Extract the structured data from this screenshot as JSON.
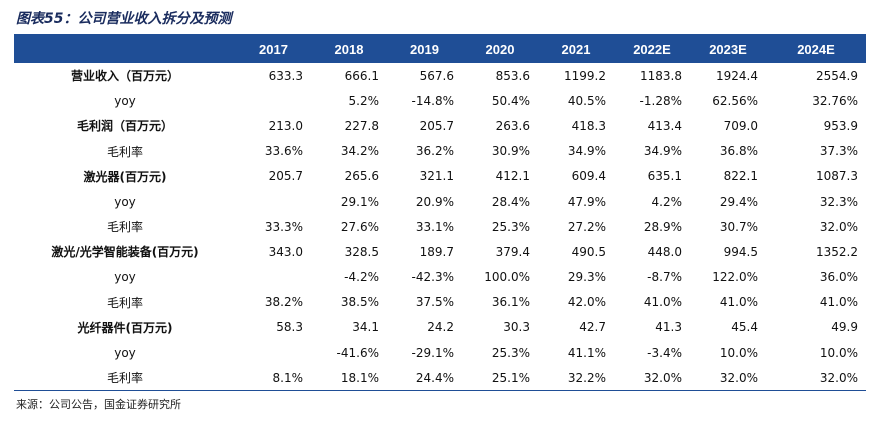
{
  "title": "图表55：公司营业收入拆分及预测",
  "header": [
    "",
    "2017",
    "2018",
    "2019",
    "2020",
    "2021",
    "2022E",
    "2023E",
    "2024E"
  ],
  "rows": [
    {
      "type": "main",
      "label": "营业收入（百万元）",
      "values": [
        "633.3",
        "666.1",
        "567.6",
        "853.6",
        "1199.2",
        "1183.8",
        "1924.4",
        "2554.9"
      ]
    },
    {
      "type": "sub",
      "label": "yoy",
      "values": [
        "",
        "5.2%",
        "-14.8%",
        "50.4%",
        "40.5%",
        "-1.28%",
        "62.56%",
        "32.76%"
      ]
    },
    {
      "type": "main",
      "label": "毛利润（百万元）",
      "values": [
        "213.0",
        "227.8",
        "205.7",
        "263.6",
        "418.3",
        "413.4",
        "709.0",
        "953.9"
      ]
    },
    {
      "type": "sub",
      "label": "毛利率",
      "values": [
        "33.6%",
        "34.2%",
        "36.2%",
        "30.9%",
        "34.9%",
        "34.9%",
        "36.8%",
        "37.3%"
      ]
    },
    {
      "type": "main",
      "label": "激光器(百万元)",
      "values": [
        "205.7",
        "265.6",
        "321.1",
        "412.1",
        "609.4",
        "635.1",
        "822.1",
        "1087.3"
      ]
    },
    {
      "type": "sub",
      "label": "yoy",
      "values": [
        "",
        "29.1%",
        "20.9%",
        "28.4%",
        "47.9%",
        "4.2%",
        "29.4%",
        "32.3%"
      ]
    },
    {
      "type": "sub",
      "label": "毛利率",
      "values": [
        "33.3%",
        "27.6%",
        "33.1%",
        "25.3%",
        "27.2%",
        "28.9%",
        "30.7%",
        "32.0%"
      ]
    },
    {
      "type": "main",
      "label": "激光/光学智能装备(百万元)",
      "values": [
        "343.0",
        "328.5",
        "189.7",
        "379.4",
        "490.5",
        "448.0",
        "994.5",
        "1352.2"
      ]
    },
    {
      "type": "sub",
      "label": "yoy",
      "values": [
        "",
        "-4.2%",
        "-42.3%",
        "100.0%",
        "29.3%",
        "-8.7%",
        "122.0%",
        "36.0%"
      ]
    },
    {
      "type": "sub",
      "label": "毛利率",
      "values": [
        "38.2%",
        "38.5%",
        "37.5%",
        "36.1%",
        "42.0%",
        "41.0%",
        "41.0%",
        "41.0%"
      ]
    },
    {
      "type": "main",
      "label": "光纤器件(百万元)",
      "values": [
        "58.3",
        "34.1",
        "24.2",
        "30.3",
        "42.7",
        "41.3",
        "45.4",
        "49.9"
      ]
    },
    {
      "type": "sub",
      "label": "yoy",
      "values": [
        "",
        "-41.6%",
        "-29.1%",
        "25.3%",
        "41.1%",
        "-3.4%",
        "10.0%",
        "10.0%"
      ]
    },
    {
      "type": "sub",
      "label": "毛利率",
      "values": [
        "8.1%",
        "18.1%",
        "24.4%",
        "25.1%",
        "32.2%",
        "32.0%",
        "32.0%",
        "32.0%"
      ]
    }
  ],
  "source": "来源：公司公告，国金证券研究所",
  "colors": {
    "header_bg": "#1f4e96",
    "header_text": "#ffffff",
    "title_text": "#1a2c5e"
  }
}
